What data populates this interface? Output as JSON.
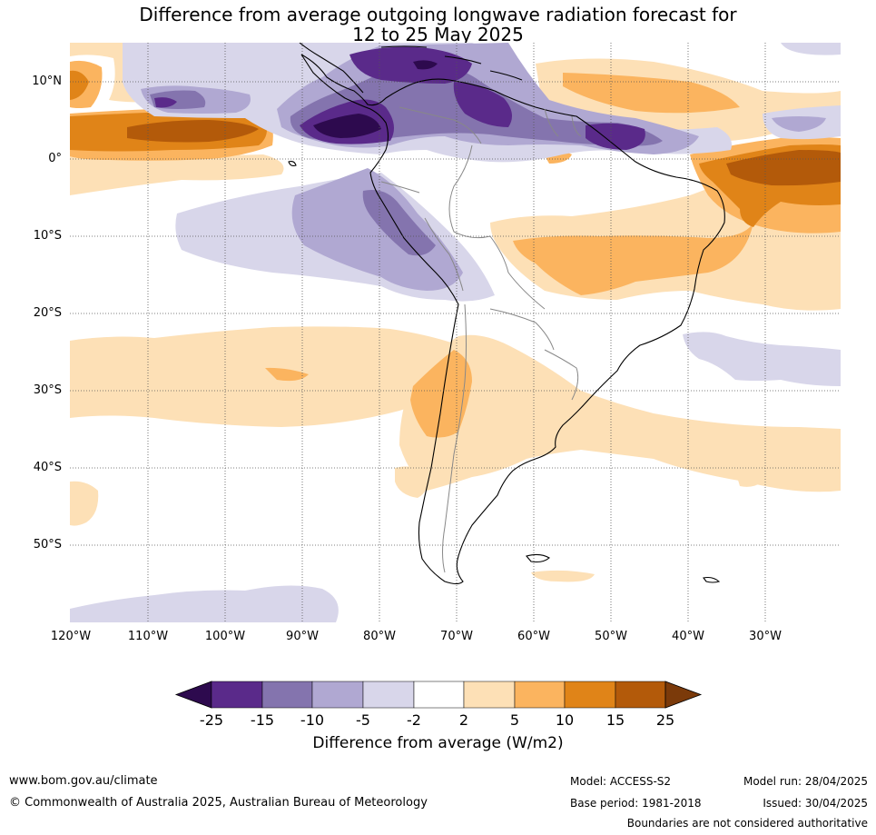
{
  "title_line1": "Difference from average outgoing longwave radiation forecast for",
  "title_line2": "12 to 25 May 2025",
  "lat_labels": [
    "10°N",
    "0°",
    "10°S",
    "20°S",
    "30°S",
    "40°S",
    "50°S"
  ],
  "lat_values": [
    10,
    0,
    -10,
    -20,
    -30,
    -40,
    -50
  ],
  "lon_labels": [
    "120°W",
    "110°W",
    "100°W",
    "90°W",
    "80°W",
    "70°W",
    "60°W",
    "50°W",
    "40°W",
    "30°W"
  ],
  "lon_values": [
    -120,
    -110,
    -100,
    -90,
    -80,
    -70,
    -60,
    -50,
    -40,
    -30
  ],
  "colorbar": {
    "ticks": [
      "-25",
      "-15",
      "-10",
      "-5",
      "-2",
      "2",
      "5",
      "10",
      "15",
      "25"
    ],
    "colors": [
      "#2d0a4e",
      "#5a2a8a",
      "#8474ae",
      "#b0a8d2",
      "#d8d6ea",
      "#ffffff",
      "#fde0b6",
      "#fbb45f",
      "#e08418",
      "#b35a0a",
      "#7b3a0a"
    ],
    "label": "Difference from average (W/m2)"
  },
  "footer": {
    "website": "www.bom.gov.au/climate",
    "copyright": "© Commonwealth of Australia 2025, Australian Bureau of Meteorology",
    "model": "Model: ACCESS-S2",
    "base_period": "Base period: 1981-2018",
    "model_run": "Model run: 28/04/2025",
    "issued": "Issued: 30/04/2025",
    "disclaimer": "Boundaries are not considered authoritative"
  }
}
